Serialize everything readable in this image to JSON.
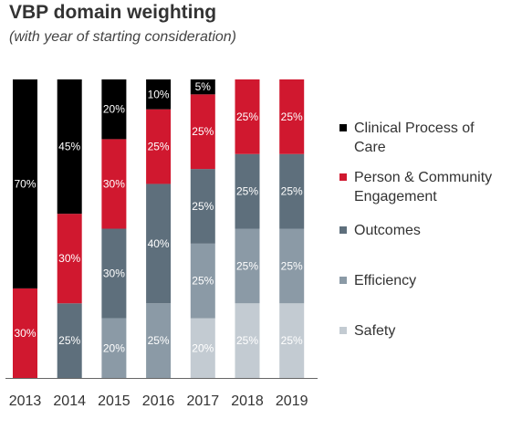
{
  "title": "VBP domain weighting",
  "subtitle": "(with year of starting consideration)",
  "chart_data": {
    "type": "bar",
    "stacked": true,
    "categories": [
      "2013",
      "2014",
      "2015",
      "2016",
      "2017",
      "2018",
      "2019"
    ],
    "ylim": [
      0,
      100
    ],
    "grid": false,
    "legend_position": "right",
    "series": [
      {
        "name": "Safety",
        "color": "#c3cbd2",
        "values": [
          0,
          0,
          0,
          0,
          20,
          25,
          25
        ]
      },
      {
        "name": "Efficiency",
        "color": "#8b9aa6",
        "values": [
          0,
          0,
          20,
          25,
          25,
          25,
          25
        ]
      },
      {
        "name": "Outcomes",
        "color": "#5e6f7c",
        "values": [
          0,
          25,
          30,
          40,
          25,
          25,
          25
        ]
      },
      {
        "name": "Person & Community Engagement",
        "color": "#d0182f",
        "values": [
          30,
          30,
          30,
          25,
          25,
          25,
          25
        ]
      },
      {
        "name": "Clinical Process of Care",
        "color": "#000000",
        "values": [
          70,
          45,
          20,
          10,
          5,
          0,
          0
        ]
      }
    ],
    "legend": [
      {
        "label_lines": [
          "Clinical Process of",
          "Care"
        ],
        "color": "#000000"
      },
      {
        "label_lines": [
          "Person & Community",
          "Engagement"
        ],
        "color": "#d0182f"
      },
      {
        "label_lines": [
          "Outcomes"
        ],
        "color": "#5e6f7c"
      },
      {
        "label_lines": [
          "Efficiency"
        ],
        "color": "#8b9aa6"
      },
      {
        "label_lines": [
          "Safety"
        ],
        "color": "#c3cbd2"
      }
    ]
  }
}
